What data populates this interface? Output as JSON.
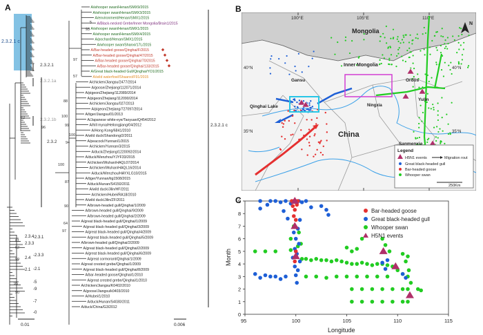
{
  "panels": {
    "a": "A",
    "b": "B",
    "c": "C"
  },
  "tree": {
    "clades": [
      "2.3.2.1 c",
      "2.3.2.1",
      "2.3.2.1a",
      "2.3.2.1b",
      "2.3.2",
      "2.3.4",
      "2.3.3",
      "2.4",
      "2.1",
      "2.2",
      "-2.3.1",
      "-2.3.3",
      "-2.1",
      "-5",
      "-9",
      "-7",
      "-0"
    ],
    "right_clade": "2.3.2.1 c",
    "scale_left": "0.01",
    "scale_right": "0.006",
    "taxa": [
      "A/whooper swan/Henan/SMX9/2015",
      "A/whooper swan/Henan/SMX3/2015",
      "A/environment/Henan/SMX1/2015",
      "A/Black-necked Grebe/Inner Mongolia/Brain1/2015",
      "A/whooper swan/Henan/SMX1/2015",
      "A/whooper swan/Henan/SMX4/2015",
      "A/pochard/Henan/SMX1/2015",
      "A/whooper swan/Shanxi/17L/2015",
      "A/Bar-headed goose/Qinghai/F/2015",
      "A/Bar-headed goose/Qinghai/47/2015",
      "A/Bar-headed goose/Qinghai/70/2015",
      "A/Bar-headed goose/Qinghai/133/2015",
      "A/Great black-headed Gull/Qinghai/YO1/2015",
      "A/wild waterfowl/Shaanxi/F91/2015",
      "A/chicken/Jiangsu/2477/2014",
      "A/goose/Zhejiang/112071/2014",
      "A/pigeon/Zhejiang/112089/2014",
      "A/pigeon/Zhejiang/112090/2014",
      "A/chicken/Jiangsu/027/2013",
      "A/pigeon/Zhejiang/727097/2014",
      "A/tiger/Jiangsu/01/2013",
      "A/Japanese white-eye/Taoyuan/Q454/2012",
      "A/hill myna/Heilongjiang/04/2012",
      "A/Hong Kong/6841/2010",
      "A/wild duck/Shandong/2/2011",
      "A/peacock/Yunnan/1/2015",
      "A/chicken/Yunnan/3/2015",
      "A/duck/Zhejiang/1220092/2014",
      "A/duck/Wenzhou/YJYF33/2015",
      "A/chicken/Wuhan/HAQL07/2014",
      "A/chicken/Wuhan/HAQL16/2014",
      "A/duck/Wenzhou/HAYXLG10/2015",
      "A/tiger/Yunnan/tig1508/2015",
      "A/duck/Hunan/S4150/2011",
      "A/wild duck/Jilin/HF/2011",
      "A/chicken/Hubei/RA18/2010",
      "A/wild duck/Jilin/ZF/2011",
      "A/brown-headed gull/Qinghai/1/2009",
      "A/brown-headed gull/Qinghai/9/2009",
      "A/brown-headed gull/Qinghai/2/2009",
      "A/great black-headed gull/Qinghai/1/2009",
      "A/great black-headed gull/Qinghai/3/2009",
      "A/great black-headed gull/Qinghai/4/2009",
      "A/great black-headed gull/Qinghai/5/2009",
      "A/brown-headed gull/Qinghai/2/2009",
      "A/great black-headed gull/Qinghai/2/2009",
      "A/great black-headed gull/Qinghai/6/2009",
      "A/great cormorant/Qinghai/1/2009",
      "A/great crested grebe/Qinghai/1/2009",
      "A/great black-headed gull/Qinghai/8/2009",
      "A/bar-headed goose/Qinghai/1/2010",
      "A/great crested grebe/Qinghai/1/2010",
      "A/chicken/Jiangsu/K0402/2010",
      "A/goose/Jiangsu/k0403/2010",
      "A/Hubei/1/2010",
      "A/duck/Hunan/S4030/2011",
      "A/duck/China/G3/2012"
    ],
    "taxa_colors": {
      "default": "#1f6b1f",
      "red": "#c0392b",
      "orange": "#e08a1e",
      "purple": "#7a2a7a",
      "black": "#222222"
    },
    "bootstrap": [
      "97",
      "57",
      "5",
      "93",
      "88",
      "100",
      "99",
      "100",
      "94",
      "100",
      "96",
      "87",
      "90",
      "64",
      "97",
      "81",
      "62",
      "99",
      "95",
      "90"
    ]
  },
  "map": {
    "labels": {
      "mongolia": "Mongolia",
      "inner_mongolia": "Inner Mongolia",
      "gansu": "Gansu",
      "ningxia": "Ningxia",
      "qinghai_lake": "Qinghai Lake",
      "china": "China",
      "ordos": "Ordos",
      "yulin": "Yulin",
      "sanmenxia": "Sanmenxia",
      "north": "N"
    },
    "lon_ticks": [
      "100°E",
      "105°E",
      "110°E"
    ],
    "lat_ticks": [
      "40°N",
      "35°N"
    ],
    "legend": {
      "title": "Legend",
      "items": [
        "H5N1 events",
        "Migration rout",
        "Great black-headed gull",
        "Bar-headed goose",
        "Whooper swan"
      ],
      "scale": "250Km"
    },
    "colors": {
      "green": "#22cc22",
      "blue": "#1e5fd6",
      "red": "#e53030",
      "purple": "#b0306a",
      "magenta": "#d23cd2",
      "cyan": "#27c6e6",
      "river": "#3aa0e8"
    }
  },
  "chart_data": {
    "type": "scatter",
    "xlabel": "Longitude",
    "ylabel": "Month",
    "xlim": [
      95,
      115
    ],
    "ylim": [
      0,
      9
    ],
    "xticks": [
      95,
      100,
      105,
      110,
      115
    ],
    "yticks": [
      0,
      1,
      2,
      3,
      4,
      5,
      6,
      7,
      8,
      9
    ],
    "legend_position": "top-right",
    "series": [
      {
        "name": "Bar-headed goose",
        "color": "#e53030",
        "points": [
          [
            99.6,
            9
          ],
          [
            99.8,
            9
          ],
          [
            100.0,
            9
          ],
          [
            100.2,
            9
          ],
          [
            99.7,
            8.6
          ],
          [
            99.9,
            8.3
          ],
          [
            100.1,
            8.7
          ],
          [
            99.8,
            7.8
          ],
          [
            100.0,
            7.5
          ],
          [
            99.9,
            4.2
          ],
          [
            100.0,
            5.0
          ]
        ]
      },
      {
        "name": "Great black-headed gull",
        "color": "#1e5fd6",
        "points": [
          [
            96.5,
            9
          ],
          [
            97.5,
            9
          ],
          [
            98.0,
            9
          ],
          [
            98.5,
            8.9
          ],
          [
            99.0,
            9
          ],
          [
            99.5,
            8.8
          ],
          [
            100.3,
            9
          ],
          [
            100.6,
            8.9
          ],
          [
            101.0,
            9
          ],
          [
            101.5,
            8.5
          ],
          [
            96.5,
            8.4
          ],
          [
            97.2,
            8.7
          ],
          [
            98.8,
            8.2
          ],
          [
            99.2,
            7.6
          ],
          [
            100.4,
            7.5
          ],
          [
            100.2,
            6.8
          ],
          [
            99.8,
            6.5
          ],
          [
            100.0,
            6.0
          ],
          [
            100.3,
            5.6
          ],
          [
            99.9,
            5.2
          ],
          [
            100.1,
            4.8
          ],
          [
            99.7,
            4.5
          ],
          [
            100.4,
            4.2
          ],
          [
            99.9,
            3.8
          ],
          [
            100.2,
            3.5
          ],
          [
            100.0,
            3.1
          ],
          [
            96.0,
            3.2
          ],
          [
            96.5,
            2.9
          ],
          [
            97.0,
            3.1
          ],
          [
            97.5,
            3.0
          ],
          [
            98.0,
            3.0
          ],
          [
            98.5,
            2.8
          ],
          [
            99.0,
            3.0
          ],
          [
            102.5,
            8.6
          ],
          [
            103.0,
            8.3
          ],
          [
            103.2,
            7.9
          ],
          [
            108.5,
            4.1
          ],
          [
            109.0,
            4.3
          ],
          [
            108.8,
            3.6
          ],
          [
            110.5,
            3.2
          ],
          [
            110.8,
            2.9
          ],
          [
            100.1,
            2.5
          ]
        ]
      },
      {
        "name": "Whooper swan",
        "color": "#22cc22",
        "points": [
          [
            99.5,
            5.1
          ],
          [
            100.2,
            5.4
          ],
          [
            100.5,
            5.6
          ],
          [
            100.0,
            4.6
          ],
          [
            100.6,
            4.4
          ],
          [
            101.0,
            4.4
          ],
          [
            101.5,
            4.3
          ],
          [
            102.0,
            4.4
          ],
          [
            102.5,
            4.3
          ],
          [
            103.0,
            4.3
          ],
          [
            103.5,
            4.2
          ],
          [
            104.0,
            4.3
          ],
          [
            104.5,
            4.2
          ],
          [
            105.0,
            4.1
          ],
          [
            105.5,
            4.0
          ],
          [
            106.0,
            4.0
          ],
          [
            106.5,
            4.1
          ],
          [
            107.0,
            4.0
          ],
          [
            107.5,
            3.9
          ],
          [
            108.0,
            4.0
          ],
          [
            108.5,
            4.0
          ],
          [
            109.0,
            3.9
          ],
          [
            109.5,
            3.8
          ],
          [
            110.0,
            3.5
          ],
          [
            110.5,
            3.2
          ],
          [
            111.0,
            3.0
          ],
          [
            101.0,
            3.0
          ],
          [
            102.0,
            3.0
          ],
          [
            103.0,
            2.9
          ],
          [
            104.0,
            3.0
          ],
          [
            105.0,
            3.0
          ],
          [
            106.0,
            3.0
          ],
          [
            107.0,
            3.0
          ],
          [
            108.0,
            3.0
          ],
          [
            109.0,
            3.0
          ],
          [
            105.5,
            2.0
          ],
          [
            106.5,
            2.0
          ],
          [
            107.5,
            2.0
          ],
          [
            108.5,
            2.0
          ],
          [
            109.5,
            2.0
          ],
          [
            110.5,
            2.0
          ],
          [
            111.0,
            2.0
          ],
          [
            105.5,
            1.0
          ],
          [
            106.5,
            1.0
          ],
          [
            107.5,
            1.0
          ],
          [
            108.5,
            1.0
          ],
          [
            109.5,
            1.0
          ],
          [
            110.5,
            1.0
          ],
          [
            111.0,
            1.0
          ],
          [
            111.2,
            1.5
          ],
          [
            111.3,
            2.5
          ],
          [
            111.1,
            3.5
          ],
          [
            110.8,
            4.2
          ],
          [
            105.5,
            5.0
          ],
          [
            106.0,
            5.2
          ],
          [
            106.5,
            6.0
          ],
          [
            105.0,
            5.3
          ],
          [
            108.5,
            6.0
          ],
          [
            108.8,
            5.5
          ],
          [
            109.2,
            5.0
          ],
          [
            111.0,
            4.6
          ],
          [
            110.5,
            4.8
          ],
          [
            112.0,
            2.0
          ],
          [
            112.3,
            1.9
          ],
          [
            97.0,
            5.0
          ],
          [
            98.0,
            5.0
          ],
          [
            96.0,
            5.0
          ],
          [
            99.5,
            6.0
          ],
          [
            100.3,
            6.5
          ],
          [
            99.8,
            7.0
          ]
        ]
      },
      {
        "name": "H5N1 events",
        "color": "#b0306a",
        "points": [
          [
            99.9,
            9
          ],
          [
            99.9,
            7
          ],
          [
            108.6,
            5
          ],
          [
            109.8,
            3.8
          ],
          [
            111.2,
            1.5
          ],
          [
            100.0,
            4.6
          ]
        ]
      }
    ]
  }
}
